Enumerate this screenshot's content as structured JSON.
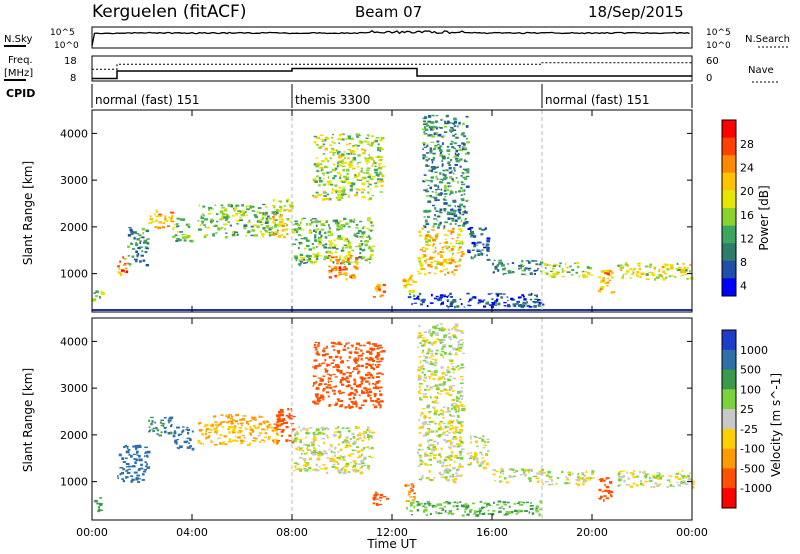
{
  "header": {
    "station": "Kerguelen (fitACF)",
    "beam": "Beam 07",
    "date": "18/Sep/2015"
  },
  "strip_top": {
    "left_label": "N.Sky",
    "right_label": "N.Search",
    "left_ticks": [
      "10^5",
      "10^0"
    ],
    "right_ticks": [
      "10^5",
      "10^0"
    ]
  },
  "strip_freq": {
    "left_label_1": "Freq.",
    "left_label_2": "[MHz]",
    "right_label": "Nave",
    "left_ticks": [
      "18",
      "8"
    ],
    "right_ticks": [
      "60",
      "0"
    ]
  },
  "cpid": {
    "label": "CPID",
    "segments": [
      {
        "label": "normal (fast) 151",
        "start_hour": 0,
        "end_hour": 8
      },
      {
        "label": "themis 3300",
        "start_hour": 8,
        "end_hour": 18
      },
      {
        "label": "normal (fast) 151",
        "start_hour": 18,
        "end_hour": 24
      }
    ]
  },
  "panels": {
    "ylabel": "Slant Range [km]",
    "yticks": [
      "4000",
      "3000",
      "2000",
      "1000"
    ],
    "xticks": [
      "00:00",
      "04:00",
      "08:00",
      "12:00",
      "16:00",
      "20:00",
      "00:00"
    ],
    "xlabel": "Time UT"
  },
  "power_colorbar": {
    "label": "Power [dB]",
    "ticks": [
      "28",
      "24",
      "20",
      "16",
      "12",
      "8",
      "4"
    ],
    "colors": [
      "#ff0000",
      "#ff4000",
      "#ff8a00",
      "#ffc400",
      "#e6e600",
      "#8bd22e",
      "#3aa65f",
      "#2e7d6b",
      "#1f4fa8",
      "#0000ff"
    ]
  },
  "velocity_colorbar": {
    "label": "Velocity [m s^-1]",
    "ticks": [
      "1000",
      "500",
      "100",
      "25",
      "-25",
      "-100",
      "-500",
      "-1000"
    ],
    "colors": [
      "#1e3cc8",
      "#2f6fa8",
      "#3a9a4a",
      "#7ad23c",
      "#c8c8c8",
      "#ffd000",
      "#ff9a00",
      "#ff5000",
      "#ff0000"
    ]
  },
  "chart_data": {
    "type": "heatmap",
    "x_range_hours": [
      0,
      24
    ],
    "y_range_km": [
      180,
      4500
    ],
    "power_blobs": [
      {
        "t0": 0.0,
        "t1": 0.4,
        "r0": 400,
        "r1": 700,
        "dB": 14
      },
      {
        "t0": 1.0,
        "t1": 1.4,
        "r0": 900,
        "r1": 1400,
        "dB": 26
      },
      {
        "t0": 1.4,
        "t1": 2.2,
        "r0": 1200,
        "r1": 2000,
        "dB": 10
      },
      {
        "t0": 2.2,
        "t1": 3.2,
        "r0": 2000,
        "r1": 2400,
        "dB": 22
      },
      {
        "t0": 3.2,
        "t1": 4.0,
        "r0": 1700,
        "r1": 2200,
        "dB": 14
      },
      {
        "t0": 4.2,
        "t1": 7.4,
        "r0": 1800,
        "r1": 2500,
        "dB": 14
      },
      {
        "t0": 7.2,
        "t1": 8.0,
        "r0": 1800,
        "r1": 2600,
        "dB": 18
      },
      {
        "t0": 8.0,
        "t1": 11.2,
        "r0": 1200,
        "r1": 2200,
        "dB": 14
      },
      {
        "t0": 9.4,
        "t1": 10.6,
        "r0": 900,
        "r1": 1400,
        "dB": 24
      },
      {
        "t0": 8.8,
        "t1": 11.6,
        "r0": 2600,
        "r1": 4000,
        "dB": 16
      },
      {
        "t0": 11.2,
        "t1": 11.8,
        "r0": 500,
        "r1": 800,
        "dB": 22
      },
      {
        "t0": 12.4,
        "t1": 12.9,
        "r0": 600,
        "r1": 1000,
        "dB": 20
      },
      {
        "t0": 13.0,
        "t1": 14.8,
        "r0": 1000,
        "r1": 2000,
        "dB": 20
      },
      {
        "t0": 13.2,
        "t1": 15.0,
        "r0": 2000,
        "r1": 4400,
        "dB": 10
      },
      {
        "t0": 15.0,
        "t1": 15.8,
        "r0": 1300,
        "r1": 2000,
        "dB": 8
      },
      {
        "t0": 16.0,
        "t1": 18.0,
        "r0": 1000,
        "r1": 1300,
        "dB": 10
      },
      {
        "t0": 18.0,
        "t1": 20.0,
        "r0": 950,
        "r1": 1250,
        "dB": 16
      },
      {
        "t0": 20.2,
        "t1": 20.8,
        "r0": 600,
        "r1": 1100,
        "dB": 22
      },
      {
        "t0": 21.0,
        "t1": 24.0,
        "r0": 900,
        "r1": 1250,
        "dB": 18
      },
      {
        "t0": 12.5,
        "t1": 18.0,
        "r0": 300,
        "r1": 600,
        "dB": 6
      }
    ],
    "velocity_blobs": [
      {
        "t0": 0.0,
        "t1": 0.4,
        "r0": 400,
        "r1": 700,
        "v": 150
      },
      {
        "t0": 1.0,
        "t1": 2.2,
        "r0": 1000,
        "r1": 1800,
        "v": 500
      },
      {
        "t0": 2.2,
        "t1": 3.2,
        "r0": 2000,
        "r1": 2400,
        "v": 300
      },
      {
        "t0": 3.2,
        "t1": 4.0,
        "r0": 1700,
        "r1": 2200,
        "v": 400
      },
      {
        "t0": 4.2,
        "t1": 7.4,
        "r0": 1800,
        "r1": 2300,
        "v": -50
      },
      {
        "t0": 4.8,
        "t1": 7.0,
        "r0": 2250,
        "r1": 2450,
        "v": -200
      },
      {
        "t0": 7.2,
        "t1": 8.0,
        "r0": 1800,
        "r1": 2600,
        "v": -600
      },
      {
        "t0": 8.0,
        "t1": 11.2,
        "r0": 1200,
        "r1": 2200,
        "v": 0
      },
      {
        "t0": 8.8,
        "t1": 11.6,
        "r0": 2600,
        "r1": 4000,
        "v": -400
      },
      {
        "t0": 11.2,
        "t1": 11.8,
        "r0": 500,
        "r1": 800,
        "v": -500
      },
      {
        "t0": 12.4,
        "t1": 12.9,
        "r0": 600,
        "r1": 1000,
        "v": -300
      },
      {
        "t0": 13.0,
        "t1": 14.8,
        "r0": 1000,
        "r1": 4400,
        "v": 0
      },
      {
        "t0": 15.0,
        "t1": 15.8,
        "r0": 1300,
        "r1": 2000,
        "v": 0
      },
      {
        "t0": 16.0,
        "t1": 18.0,
        "r0": 1000,
        "r1": 1300,
        "v": 0
      },
      {
        "t0": 18.0,
        "t1": 20.0,
        "r0": 950,
        "r1": 1250,
        "v": 0
      },
      {
        "t0": 20.2,
        "t1": 20.8,
        "r0": 600,
        "r1": 1100,
        "v": -400
      },
      {
        "t0": 21.0,
        "t1": 24.0,
        "r0": 900,
        "r1": 1250,
        "v": 0
      },
      {
        "t0": 12.5,
        "t1": 18.0,
        "r0": 300,
        "r1": 600,
        "v": 60
      }
    ]
  }
}
